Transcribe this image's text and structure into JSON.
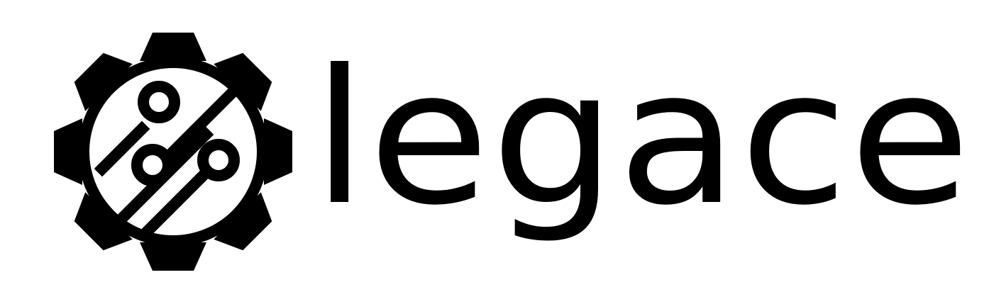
{
  "logo": {
    "wordmark": "legace",
    "emblem_icon": "gear-circuit-icon",
    "ink_color": "#000000",
    "background_color": "#ffffff"
  }
}
